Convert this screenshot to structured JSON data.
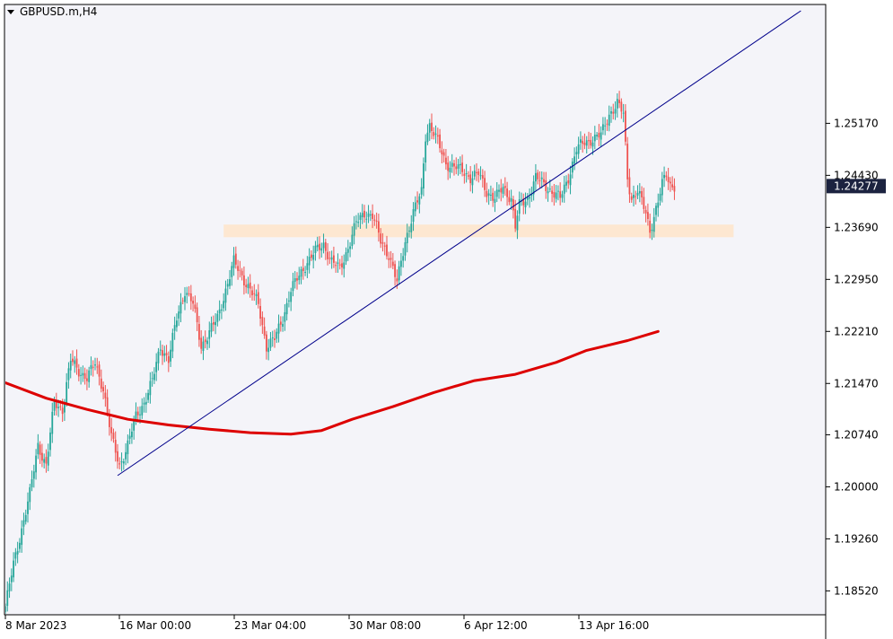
{
  "window": {
    "title": "GBPUSD.m,H4",
    "menu_icon": "triangle-down-icon"
  },
  "current_price_label": "1.24277",
  "colors": {
    "background": "#f4f4f9",
    "bull": "#26a69a",
    "bear": "#ef5350",
    "wick": "#555555",
    "ma": "#dd0000",
    "trendline": "#00008b",
    "zone": "#fde6cf",
    "price_box": "#1c2340"
  },
  "chart_data": {
    "type": "candlestick",
    "title": "GBPUSD.m,H4",
    "xlabel": "",
    "ylabel": "",
    "ylim": [
      1.1818,
      1.2686
    ],
    "y_ticks": [
      "1.25170",
      "1.24430",
      "1.23690",
      "1.22950",
      "1.22210",
      "1.21470",
      "1.20740",
      "1.20000",
      "1.19260",
      "1.18520"
    ],
    "x_ticks": [
      "8 Mar 2023",
      "16 Mar 00:00",
      "23 Mar 04:00",
      "30 Mar 08:00",
      "6 Apr 12:00",
      "13 Apr 16:00"
    ],
    "bar_count_visible": 240,
    "grid": false,
    "series": [
      {
        "name": "",
        "kind": "moving_average",
        "values_approx": [
          [
            0,
            1.2148
          ],
          [
            20,
            1.2126
          ],
          [
            40,
            1.211
          ],
          [
            60,
            1.2096
          ],
          [
            80,
            1.2088
          ],
          [
            100,
            1.2082
          ],
          [
            120,
            1.2077
          ],
          [
            140,
            1.2075
          ],
          [
            155,
            1.208
          ],
          [
            170,
            1.2096
          ],
          [
            190,
            1.2114
          ],
          [
            210,
            1.2134
          ],
          [
            230,
            1.2151
          ],
          [
            250,
            1.216
          ],
          [
            270,
            1.2177
          ],
          [
            285,
            1.2194
          ],
          [
            305,
            1.2208
          ],
          [
            320,
            1.2221
          ]
        ]
      },
      {
        "name": "",
        "kind": "trendline",
        "from": [
          55,
          1.2016
        ],
        "to": [
          390,
          1.2677
        ]
      }
    ],
    "zones": [
      {
        "from_bar": 107,
        "to_bar": 357,
        "low": 1.2355,
        "high": 1.2373
      }
    ],
    "candles_anchor_closes": [
      [
        0,
        1.183
      ],
      [
        4,
        1.189
      ],
      [
        8,
        1.194
      ],
      [
        12,
        1.199
      ],
      [
        16,
        1.206
      ],
      [
        20,
        1.203
      ],
      [
        24,
        1.212
      ],
      [
        28,
        1.211
      ],
      [
        32,
        1.218
      ],
      [
        36,
        1.2165
      ],
      [
        40,
        1.2155
      ],
      [
        44,
        1.2175
      ],
      [
        48,
        1.214
      ],
      [
        52,
        1.207
      ],
      [
        56,
        1.203
      ],
      [
        60,
        1.206
      ],
      [
        64,
        1.21
      ],
      [
        68,
        1.212
      ],
      [
        72,
        1.215
      ],
      [
        76,
        1.22
      ],
      [
        80,
        1.218
      ],
      [
        84,
        1.224
      ],
      [
        88,
        1.228
      ],
      [
        92,
        1.226
      ],
      [
        96,
        1.22
      ],
      [
        100,
        1.222
      ],
      [
        104,
        1.224
      ],
      [
        108,
        1.228
      ],
      [
        112,
        1.232
      ],
      [
        116,
        1.23
      ],
      [
        120,
        1.228
      ],
      [
        124,
        1.226
      ],
      [
        128,
        1.22
      ],
      [
        132,
        1.221
      ],
      [
        136,
        1.224
      ],
      [
        140,
        1.228
      ],
      [
        144,
        1.23
      ],
      [
        148,
        1.232
      ],
      [
        152,
        1.2335
      ],
      [
        156,
        1.2345
      ],
      [
        160,
        1.232
      ],
      [
        164,
        1.231
      ],
      [
        168,
        1.234
      ],
      [
        172,
        1.2375
      ],
      [
        176,
        1.239
      ],
      [
        180,
        1.2385
      ],
      [
        184,
        1.235
      ],
      [
        188,
        1.233
      ],
      [
        192,
        1.229
      ],
      [
        196,
        1.235
      ],
      [
        200,
        1.239
      ],
      [
        204,
        1.242
      ],
      [
        206,
        1.25
      ],
      [
        208,
        1.2515
      ],
      [
        212,
        1.249
      ],
      [
        216,
        1.246
      ],
      [
        220,
        1.2455
      ],
      [
        224,
        1.245
      ],
      [
        228,
        1.244
      ],
      [
        232,
        1.2445
      ],
      [
        236,
        1.242
      ],
      [
        240,
        1.241
      ],
      [
        244,
        1.2425
      ],
      [
        248,
        1.241
      ],
      [
        250,
        1.237
      ],
      [
        252,
        1.24
      ],
      [
        256,
        1.241
      ],
      [
        260,
        1.244
      ],
      [
        264,
        1.243
      ],
      [
        268,
        1.242
      ],
      [
        272,
        1.241
      ],
      [
        276,
        1.244
      ],
      [
        280,
        1.248
      ],
      [
        284,
        1.249
      ],
      [
        288,
        1.2495
      ],
      [
        292,
        1.25
      ],
      [
        296,
        1.253
      ],
      [
        300,
        1.2545
      ],
      [
        303,
        1.253
      ],
      [
        305,
        1.244
      ],
      [
        307,
        1.241
      ],
      [
        310,
        1.242
      ],
      [
        312,
        1.2405
      ],
      [
        314,
        1.239
      ],
      [
        316,
        1.2365
      ],
      [
        318,
        1.2385
      ],
      [
        320,
        1.2405
      ],
      [
        322,
        1.243
      ],
      [
        324,
        1.2445
      ],
      [
        326,
        1.243
      ],
      [
        328,
        1.2428
      ]
    ]
  }
}
